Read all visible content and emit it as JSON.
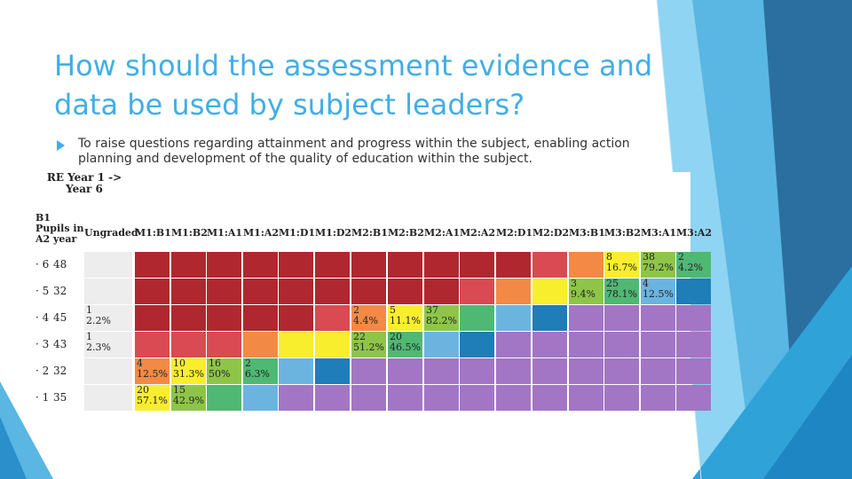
{
  "slide": {
    "title": "How should the assessment evidence and data be used by subject leaders?",
    "bullet": "To raise questions regarding attainment and progress within the subject, enabling action planning and development of the quality of education within the subject."
  },
  "table": {
    "corner_title": "RE Year 1 -> Year 6",
    "row_header": "B1 Pupils in A2 year",
    "columns": [
      "Ungraded",
      "M1:B1",
      "M1:B2",
      "M1:A1",
      "M1:A2",
      "M1:D1",
      "M1:D2",
      "M2:B1",
      "M2:B2",
      "M2:A1",
      "M2:A2",
      "M2:D1",
      "M2:D2",
      "M3:B1",
      "M3:B2",
      "M3:A1",
      "M3:A2"
    ],
    "colors": {
      "grey": "#ededed",
      "dark_red": "#b0272f",
      "red": "#d94a52",
      "orange": "#f28a46",
      "yellow": "#f8ee2e",
      "light_green": "#8ec549",
      "green": "#4fb873",
      "light_blue": "#6cb4e0",
      "blue": "#1f7db7",
      "purple": "#a276c4"
    },
    "rows": [
      {
        "label": "· 6",
        "count": "48",
        "cells": [
          {
            "color": "grey"
          },
          {
            "color": "dark_red"
          },
          {
            "color": "dark_red"
          },
          {
            "color": "dark_red"
          },
          {
            "color": "dark_red"
          },
          {
            "color": "dark_red"
          },
          {
            "color": "dark_red"
          },
          {
            "color": "dark_red"
          },
          {
            "color": "dark_red"
          },
          {
            "color": "dark_red"
          },
          {
            "color": "dark_red"
          },
          {
            "color": "dark_red"
          },
          {
            "color": "red"
          },
          {
            "color": "orange"
          },
          {
            "color": "yellow",
            "n": "8",
            "p": "16.7%"
          },
          {
            "color": "light_green",
            "n": "38",
            "p": "79.2%"
          },
          {
            "color": "green",
            "n": "2",
            "p": "4.2%"
          }
        ]
      },
      {
        "label": "· 5",
        "count": "32",
        "cells": [
          {
            "color": "grey"
          },
          {
            "color": "dark_red"
          },
          {
            "color": "dark_red"
          },
          {
            "color": "dark_red"
          },
          {
            "color": "dark_red"
          },
          {
            "color": "dark_red"
          },
          {
            "color": "dark_red"
          },
          {
            "color": "dark_red"
          },
          {
            "color": "dark_red"
          },
          {
            "color": "dark_red"
          },
          {
            "color": "red"
          },
          {
            "color": "orange"
          },
          {
            "color": "yellow"
          },
          {
            "color": "light_green",
            "n": "3",
            "p": "9.4%"
          },
          {
            "color": "green",
            "n": "25",
            "p": "78.1%"
          },
          {
            "color": "light_blue",
            "n": "4",
            "p": "12.5%"
          },
          {
            "color": "blue"
          }
        ]
      },
      {
        "label": "· 4",
        "count": "45",
        "cells": [
          {
            "color": "grey",
            "n": "1",
            "p": "2.2%"
          },
          {
            "color": "dark_red"
          },
          {
            "color": "dark_red"
          },
          {
            "color": "dark_red"
          },
          {
            "color": "dark_red"
          },
          {
            "color": "dark_red"
          },
          {
            "color": "red"
          },
          {
            "color": "orange",
            "n": "2",
            "p": "4.4%"
          },
          {
            "color": "yellow",
            "n": "5",
            "p": "11.1%"
          },
          {
            "color": "light_green",
            "n": "37",
            "p": "82.2%"
          },
          {
            "color": "green"
          },
          {
            "color": "light_blue"
          },
          {
            "color": "blue"
          },
          {
            "color": "purple"
          },
          {
            "color": "purple"
          },
          {
            "color": "purple"
          },
          {
            "color": "purple"
          }
        ]
      },
      {
        "label": "· 3",
        "count": "43",
        "cells": [
          {
            "color": "grey",
            "n": "1",
            "p": "2.3%"
          },
          {
            "color": "red"
          },
          {
            "color": "red"
          },
          {
            "color": "red"
          },
          {
            "color": "orange"
          },
          {
            "color": "yellow"
          },
          {
            "color": "yellow"
          },
          {
            "color": "light_green",
            "n": "22",
            "p": "51.2%"
          },
          {
            "color": "green",
            "n": "20",
            "p": "46.5%"
          },
          {
            "color": "light_blue"
          },
          {
            "color": "blue"
          },
          {
            "color": "purple"
          },
          {
            "color": "purple"
          },
          {
            "color": "purple"
          },
          {
            "color": "purple"
          },
          {
            "color": "purple"
          },
          {
            "color": "purple"
          }
        ]
      },
      {
        "label": "· 2",
        "count": "32",
        "cells": [
          {
            "color": "grey"
          },
          {
            "color": "orange",
            "n": "4",
            "p": "12.5%"
          },
          {
            "color": "yellow",
            "n": "10",
            "p": "31.3%"
          },
          {
            "color": "light_green",
            "n": "16",
            "p": "50%"
          },
          {
            "color": "green",
            "n": "2",
            "p": "6.3%"
          },
          {
            "color": "light_blue"
          },
          {
            "color": "blue"
          },
          {
            "color": "purple"
          },
          {
            "color": "purple"
          },
          {
            "color": "purple"
          },
          {
            "color": "purple"
          },
          {
            "color": "purple"
          },
          {
            "color": "purple"
          },
          {
            "color": "purple"
          },
          {
            "color": "purple"
          },
          {
            "color": "purple"
          },
          {
            "color": "purple"
          }
        ]
      },
      {
        "label": "· 1",
        "count": "35",
        "cells": [
          {
            "color": "grey"
          },
          {
            "color": "yellow",
            "n": "20",
            "p": "57.1%"
          },
          {
            "color": "light_green",
            "n": "15",
            "p": "42.9%"
          },
          {
            "color": "green"
          },
          {
            "color": "light_blue"
          },
          {
            "color": "purple"
          },
          {
            "color": "purple"
          },
          {
            "color": "purple"
          },
          {
            "color": "purple"
          },
          {
            "color": "purple"
          },
          {
            "color": "purple"
          },
          {
            "color": "purple"
          },
          {
            "color": "purple"
          },
          {
            "color": "purple"
          },
          {
            "color": "purple"
          },
          {
            "color": "purple"
          },
          {
            "color": "purple"
          }
        ]
      }
    ]
  }
}
